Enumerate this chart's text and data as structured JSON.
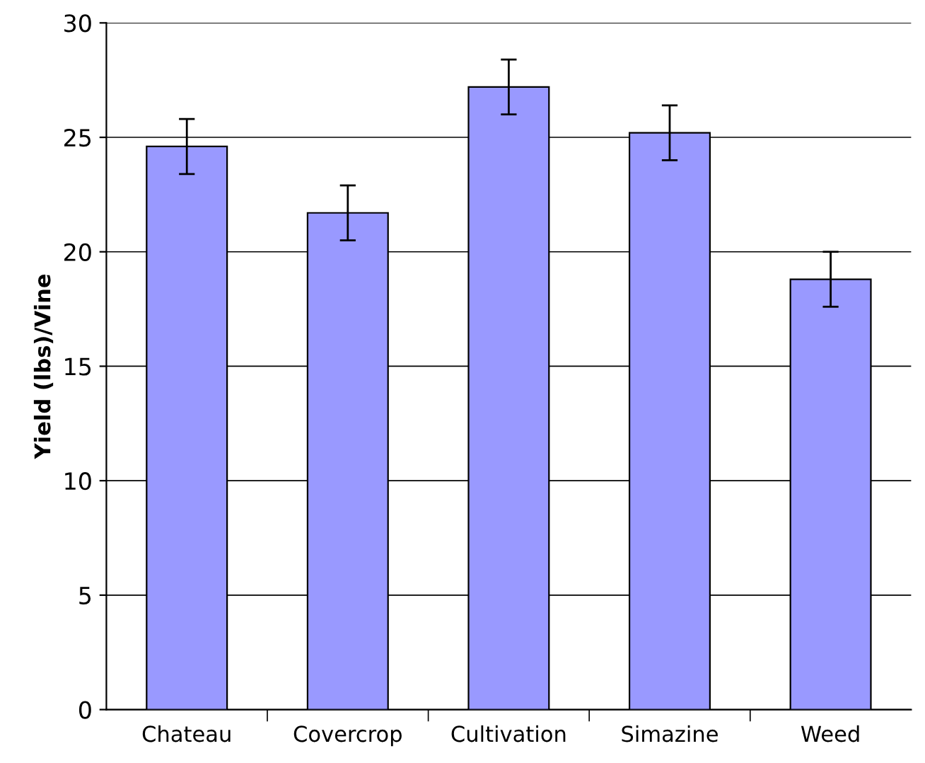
{
  "chart_data": {
    "type": "bar",
    "ylabel": "Yield (lbs)/Vine",
    "categories": [
      "Chateau",
      "Covercrop",
      "Cultivation",
      "Simazine",
      "Weed"
    ],
    "values": [
      24.6,
      21.7,
      27.2,
      25.2,
      18.8
    ],
    "errors": [
      1.2,
      1.2,
      1.2,
      1.2,
      1.2
    ],
    "color": "#9999ff",
    "ylim": [
      0,
      30
    ],
    "yticks": [
      0,
      5,
      10,
      15,
      20,
      25,
      30
    ],
    "grid": "y",
    "legend": false
  }
}
